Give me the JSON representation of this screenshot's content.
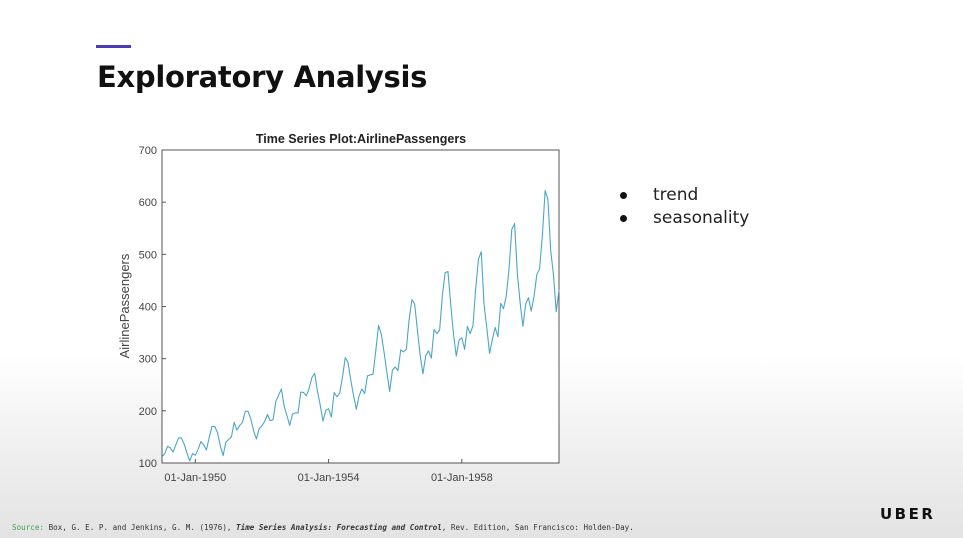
{
  "slide": {
    "title": "Exploratory Analysis",
    "accent_color": "#4b3bb5",
    "bullets": [
      "trend",
      "seasonality"
    ],
    "source": {
      "label": "Source:",
      "text1": " Box, G. E. P. and Jenkins, G. M. (1976), ",
      "italic": "Time Series Analysis: Forecasting and Control",
      "text2": ", Rev. Edition, San Francisco: Holden-Day."
    },
    "logo": "UBER"
  },
  "chart_data": {
    "type": "line",
    "title": "Time Series Plot:AirlinePassengers",
    "xlabel": "",
    "ylabel": "AirlinePassengers",
    "ylim": [
      100,
      700
    ],
    "yticks": [
      100,
      200,
      300,
      400,
      500,
      600,
      700
    ],
    "xlim": [
      "1949-01",
      "1960-12"
    ],
    "xticks": [
      {
        "date": "1950-01",
        "label": "01-Jan-1950"
      },
      {
        "date": "1954-01",
        "label": "01-Jan-1954"
      },
      {
        "date": "1958-01",
        "label": "01-Jan-1958"
      }
    ],
    "grid": false,
    "line_color": "#4aa6c9",
    "series": [
      {
        "start": "1949-01",
        "frequency": "monthly",
        "values": [
          112,
          118,
          132,
          129,
          121,
          135,
          148,
          148,
          136,
          119,
          104,
          118,
          115,
          126,
          141,
          135,
          125,
          149,
          170,
          170,
          158,
          133,
          114,
          140,
          145,
          150,
          178,
          163,
          172,
          178,
          199,
          199,
          184,
          162,
          146,
          166,
          171,
          180,
          193,
          181,
          183,
          218,
          230,
          242,
          209,
          191,
          172,
          194,
          196,
          196,
          236,
          235,
          229,
          243,
          264,
          272,
          237,
          211,
          180,
          201,
          204,
          188,
          235,
          227,
          234,
          264,
          302,
          293,
          259,
          229,
          203,
          229,
          242,
          233,
          267,
          269,
          270,
          315,
          364,
          347,
          312,
          274,
          237,
          278,
          284,
          277,
          317,
          313,
          318,
          374,
          413,
          405,
          355,
          306,
          271,
          306,
          315,
          301,
          356,
          348,
          355,
          422,
          465,
          467,
          404,
          347,
          305,
          336,
          340,
          318,
          362,
          348,
          363,
          435,
          491,
          505,
          404,
          359,
          310,
          337,
          360,
          342,
          406,
          396,
          420,
          472,
          548,
          559,
          463,
          407,
          362,
          405,
          417,
          391,
          419,
          461,
          472,
          535,
          622,
          606,
          508,
          461,
          390,
          432
        ]
      }
    ]
  }
}
